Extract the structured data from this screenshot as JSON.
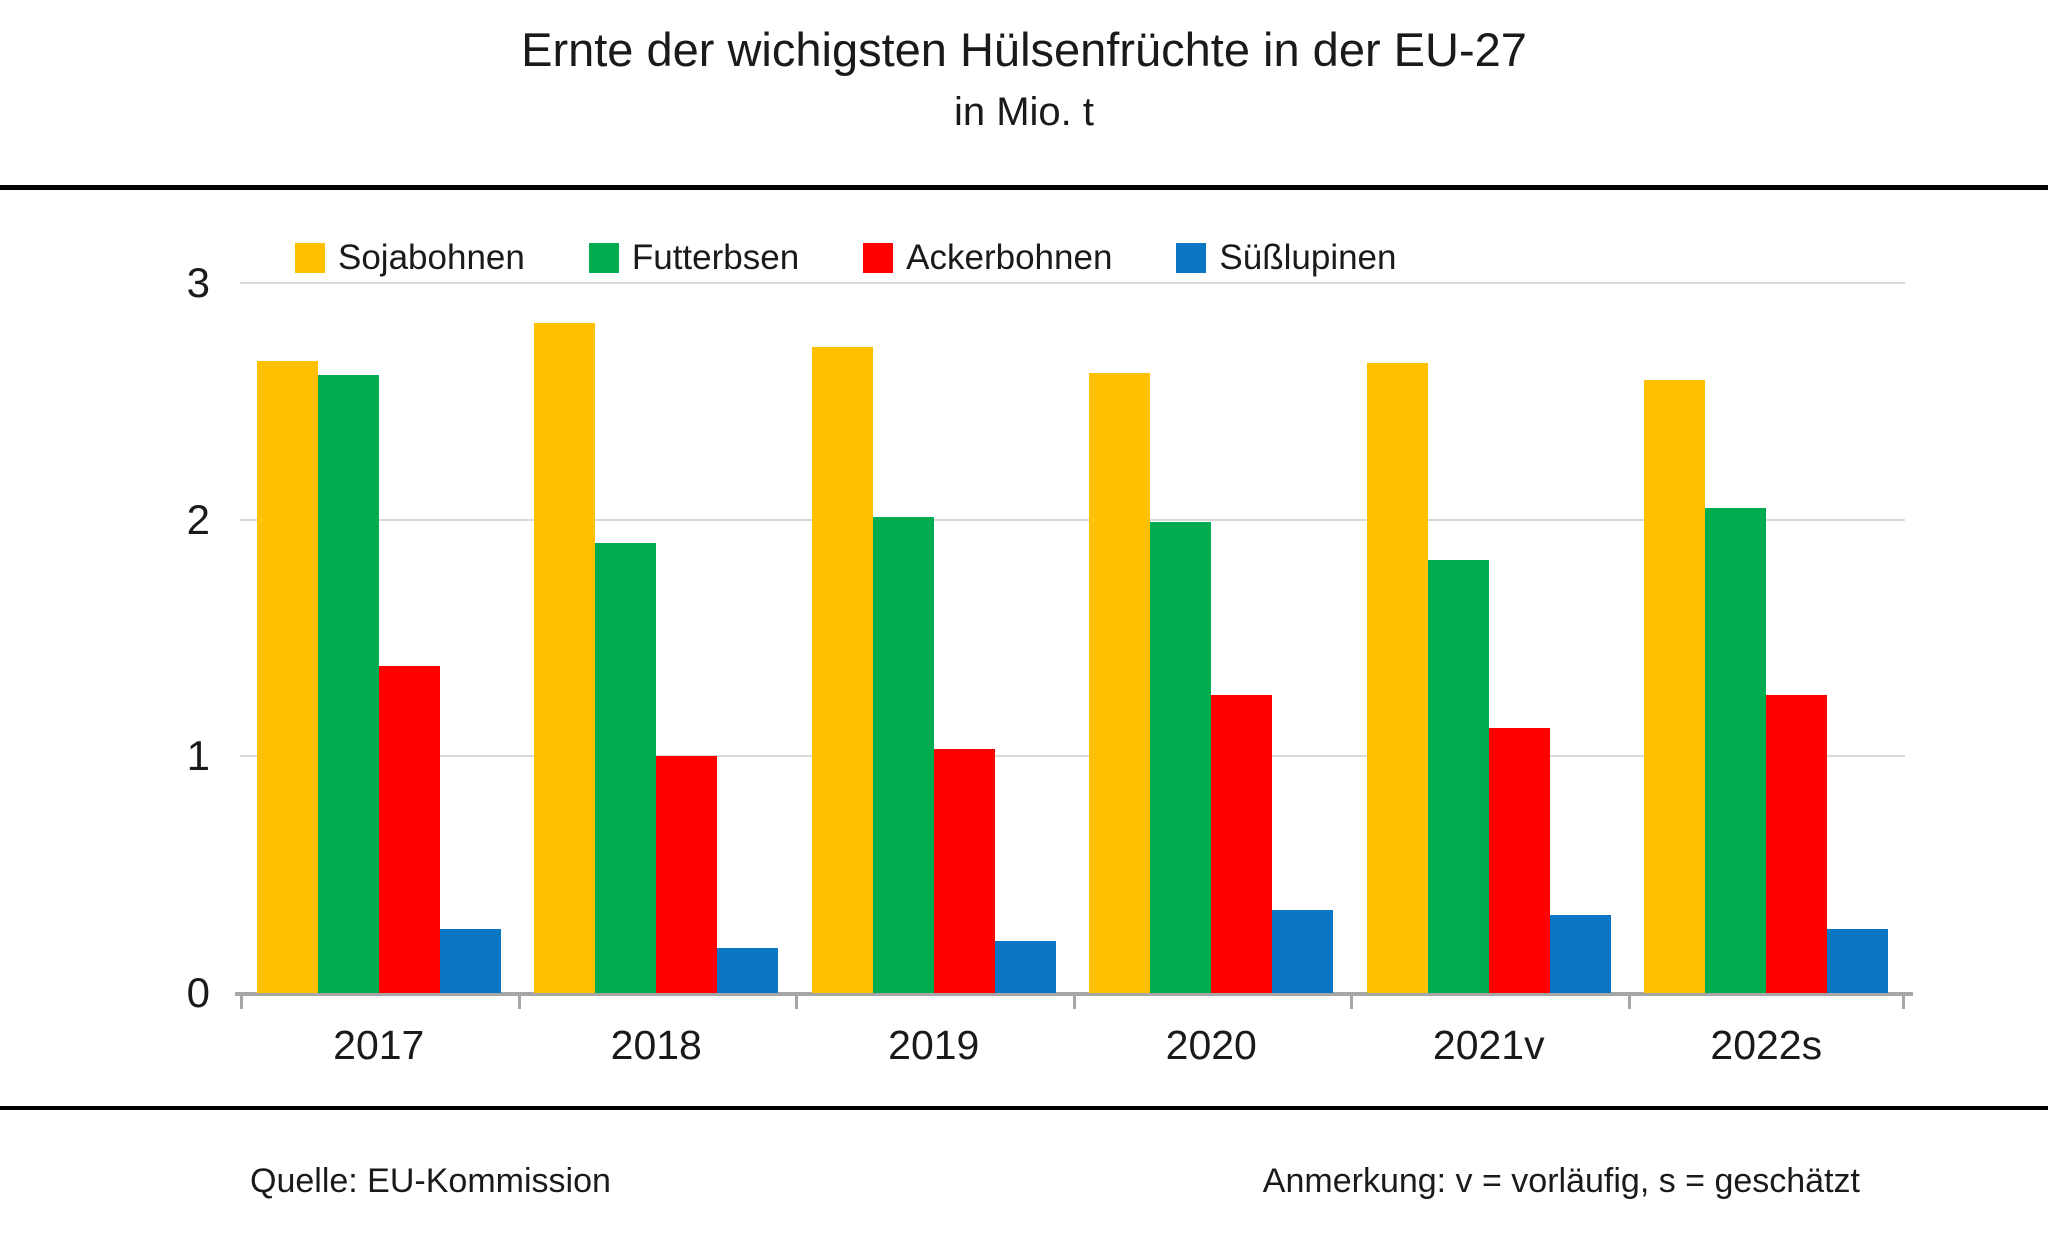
{
  "header": {
    "title": "Ernte der wichigsten Hülsenfrüchte in der EU-27",
    "subtitle": "in Mio. t"
  },
  "footer": {
    "source": "Quelle: EU-Kommission",
    "note": "Anmerkung: v = vorläufig, s = geschätzt"
  },
  "chart_data": {
    "type": "bar",
    "title": "Ernte der wichigsten Hülsenfrüchte in der EU-27",
    "subtitle": "in Mio. t",
    "categories": [
      "2017",
      "2018",
      "2019",
      "2020",
      "2021v",
      "2022s"
    ],
    "series": [
      {
        "name": "Sojabohnen",
        "color": "#FFC000",
        "values": [
          2.67,
          2.83,
          2.73,
          2.62,
          2.66,
          2.59
        ]
      },
      {
        "name": "Futterbsen",
        "color": "#00AC50",
        "values": [
          2.61,
          1.9,
          2.01,
          1.99,
          1.83,
          2.05
        ]
      },
      {
        "name": "Ackerbohnen",
        "color": "#FF0000",
        "values": [
          1.38,
          1.0,
          1.03,
          1.26,
          1.12,
          1.26
        ]
      },
      {
        "name": "Süßlupinen",
        "color": "#0B76C4",
        "values": [
          0.27,
          0.19,
          0.22,
          0.35,
          0.33,
          0.27
        ]
      }
    ],
    "xlabel": "",
    "ylabel": "",
    "ylim": [
      0,
      3
    ],
    "yticks": [
      0,
      1,
      2,
      3
    ],
    "grid": true,
    "legend_position": "top"
  },
  "style": {
    "gridline_color": "#D9D9D9",
    "axis_color": "#A6A6A6",
    "rule_color": "#000000"
  }
}
